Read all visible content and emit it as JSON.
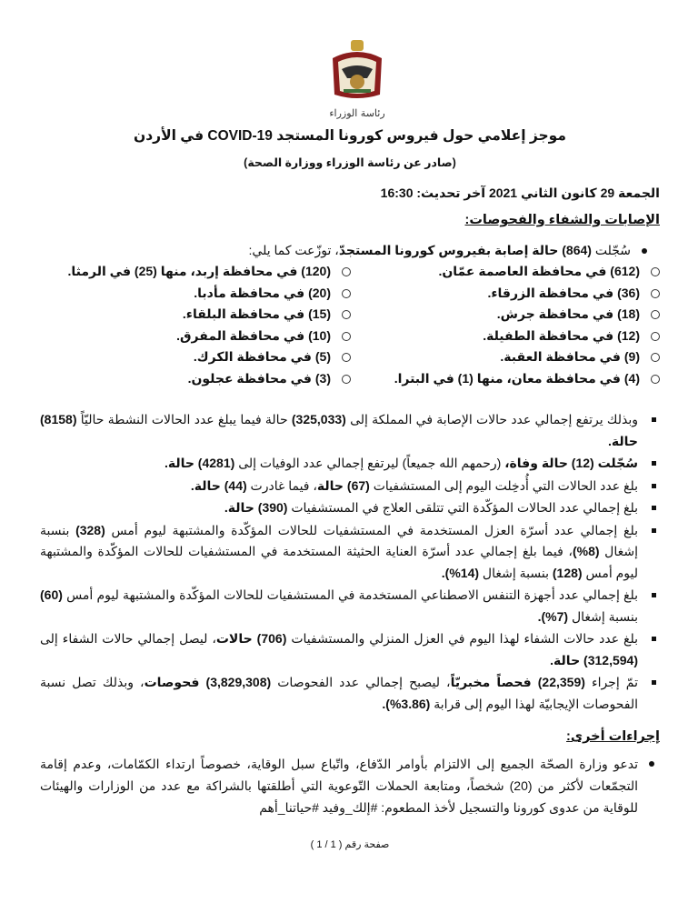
{
  "header": {
    "emblem_caption": "رئاسة الوزراء",
    "title": "موجز إعلامي حول فيروس كورونا المستجد COVID-19 في الأردن",
    "subtitle": "(صادر عن رئاسة الوزراء ووزارة الصحة)",
    "date_line": "الجمعة 29 كانون الثاني 2021 آخر تحديث: 16:30"
  },
  "section1": {
    "heading": "الإصابات والشفاء والفحوصات:",
    "lead": [
      {
        "t": "سُجّلت ",
        "b": false
      },
      {
        "t": "(864) حالة إصابة بفيروس كورونا المستجدّ",
        "b": true
      },
      {
        "t": "، توزّعت كما يلي:",
        "b": false
      }
    ],
    "governorates_col1": [
      "(612) في محافظة العاصمة عمّان.",
      "(36) في محافظة الزرقاء.",
      "(18) في محافظة جرش.",
      "(12) في محافظة الطفيلة.",
      "(9) في محافظة العقبة.",
      "(4) في محافظة معان، منها (1) في البترا."
    ],
    "governorates_col2": [
      "(120) في محافظة إربد، منها (25) في الرمثا.",
      "(20) في محافظة مأدبا.",
      "(15) في محافظة البلقاء.",
      "(10) في محافظة المفرق.",
      "(5) في محافظة الكرك.",
      "(3) في محافظة عجلون."
    ],
    "items": [
      [
        {
          "t": "وبذلك يرتفع إجمالي عدد حالات الإصابة في المملكة إلى ",
          "b": false
        },
        {
          "t": "(325,033)",
          "b": true
        },
        {
          "t": " حالة فيما يبلغ عدد الحالات النشطة حاليّاً ",
          "b": false
        },
        {
          "t": "(8158) حالة.",
          "b": true
        }
      ],
      [
        {
          "t": "سُجّلت (12) حالة وفاة،",
          "b": true
        },
        {
          "t": " (رحمهم الله جميعاً) ليرتفع إجمالي عدد الوفيات إلى ",
          "b": false
        },
        {
          "t": "(4281) حالة.",
          "b": true
        }
      ],
      [
        {
          "t": "بلغ عدد الحالات التي أُدخِلت اليوم إلى المستشفيات ",
          "b": false
        },
        {
          "t": "(67) حالة",
          "b": true
        },
        {
          "t": "، فيما غادرت ",
          "b": false
        },
        {
          "t": "(44) حالة.",
          "b": true
        }
      ],
      [
        {
          "t": "بلغ إجمالي عدد الحالات المؤكّدة التي تتلقى العلاج في المستشفيات ",
          "b": false
        },
        {
          "t": "(390) حالة.",
          "b": true
        }
      ],
      [
        {
          "t": "بلغ إجمالي عدد أسرّة العزل المستخدمة في المستشفيات للحالات المؤكّدة والمشتبهة ليوم أمس ",
          "b": false
        },
        {
          "t": "(328)",
          "b": true
        },
        {
          "t": " بنسبة إشغال ",
          "b": false
        },
        {
          "t": "(8%)",
          "b": true
        },
        {
          "t": "، فيما بلغ إجمالي عدد أسرّة العناية الحثيثة المستخدمة في المستشفيات للحالات المؤكّدة والمشتبهة ليوم أمس ",
          "b": false
        },
        {
          "t": "(128)",
          "b": true
        },
        {
          "t": " بنسبة إشغال ",
          "b": false
        },
        {
          "t": "(14%).",
          "b": true
        }
      ],
      [
        {
          "t": "بلغ إجمالي عدد أجهزة التنفس الاصطناعي المستخدمة في المستشفيات للحالات المؤكّدة والمشتبهة ليوم أمس ",
          "b": false
        },
        {
          "t": "(60)",
          "b": true
        },
        {
          "t": " بنسبة إشغال ",
          "b": false
        },
        {
          "t": "(7%).",
          "b": true
        }
      ],
      [
        {
          "t": "بلغ عدد حالات الشفاء لهذا اليوم في العزل المنزلي والمستشفيات ",
          "b": false
        },
        {
          "t": "(706) حالات",
          "b": true
        },
        {
          "t": "، ليصل إجمالي حالات الشفاء إلى ",
          "b": false
        },
        {
          "t": "(312,594) حالة.",
          "b": true
        }
      ],
      [
        {
          "t": "تمّ إجراء ",
          "b": false
        },
        {
          "t": "(22,359) فحصاً مخبريّاً",
          "b": true
        },
        {
          "t": "، ليصبح إجمالي عدد الفحوصات ",
          "b": false
        },
        {
          "t": "(3,829,308) فحوصات",
          "b": true
        },
        {
          "t": "، وبذلك تصل نسبة الفحوصات الإيجابيّة لهذا اليوم إلى قرابة ",
          "b": false
        },
        {
          "t": "(3.86%).",
          "b": true
        }
      ]
    ]
  },
  "section2": {
    "heading": "إجراءات أخرى:",
    "text": "تدعو وزارة الصحّة الجميع إلى الالتزام بأوامر الدّفاع، واتّباع سبل الوقاية، خصوصاً ارتداء الكمّامات، وعدم إقامة التجمّعات لأكثر من (20) شخصاً، ومتابعة الحملات التّوعوية التي أطلقتها بالشراكة مع عدد من الوزارات والهيئات للوقاية من عدوى كورونا والتسجيل لأخذ المطعوم: #إلك_وفيد #حياتنا_أهم"
  },
  "footer": {
    "page": "صفحة رقم ( 1 / 1 )"
  }
}
